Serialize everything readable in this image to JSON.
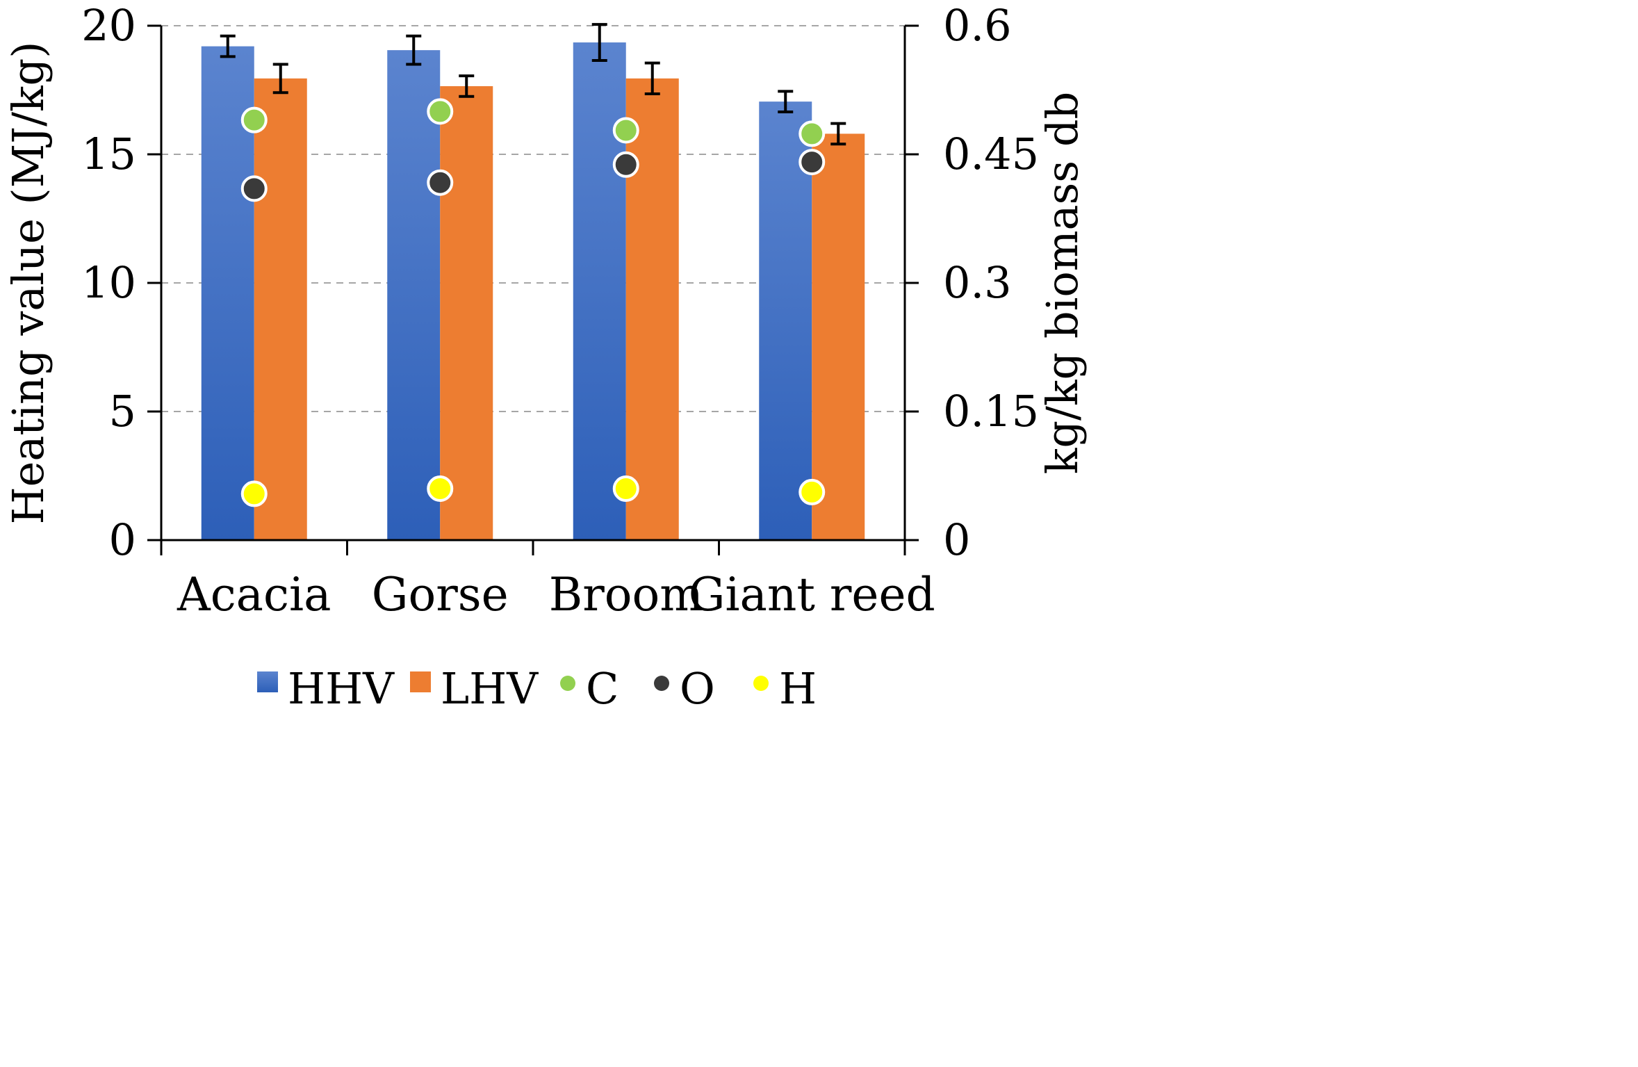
{
  "chart_data": {
    "type": "bar",
    "categories": [
      "Acacia",
      "Gorse",
      "Broom",
      "Giant reed"
    ],
    "bar_series": [
      {
        "name": "HHV",
        "values": [
          19.2,
          19.05,
          19.35,
          17.05
        ],
        "errors": [
          0.4,
          0.55,
          0.7,
          0.4
        ],
        "color": "#4472c4"
      },
      {
        "name": "LHV",
        "values": [
          17.95,
          17.65,
          17.95,
          15.8
        ],
        "errors": [
          0.55,
          0.4,
          0.6,
          0.4
        ],
        "color": "#ed7d31"
      }
    ],
    "scatter_series": [
      {
        "name": "C",
        "values": [
          0.49,
          0.5,
          0.478,
          0.474
        ],
        "color": "#92d050"
      },
      {
        "name": "O",
        "values": [
          0.41,
          0.417,
          0.438,
          0.441
        ],
        "color": "#3a3a3a"
      },
      {
        "name": "H",
        "values": [
          0.054,
          0.06,
          0.06,
          0.056
        ],
        "color": "#ffff00"
      }
    ],
    "y_left": {
      "label": "Heating value (MJ/kg)",
      "min": 0,
      "max": 20,
      "ticks": [
        "0",
        "5",
        "10",
        "15",
        "20"
      ],
      "tick_values": [
        0,
        5,
        10,
        15,
        20
      ]
    },
    "y_right": {
      "label": "kg/kg biomass db",
      "min": 0,
      "max": 0.6,
      "ticks": [
        "0",
        "0.15",
        "0.3",
        "0.45",
        "0.6"
      ],
      "tick_values": [
        0,
        0.15,
        0.3,
        0.45,
        0.6
      ]
    },
    "grid": true,
    "legend_position": "bottom",
    "legend": [
      "HHV",
      "LHV",
      "C",
      "O",
      "H"
    ]
  }
}
